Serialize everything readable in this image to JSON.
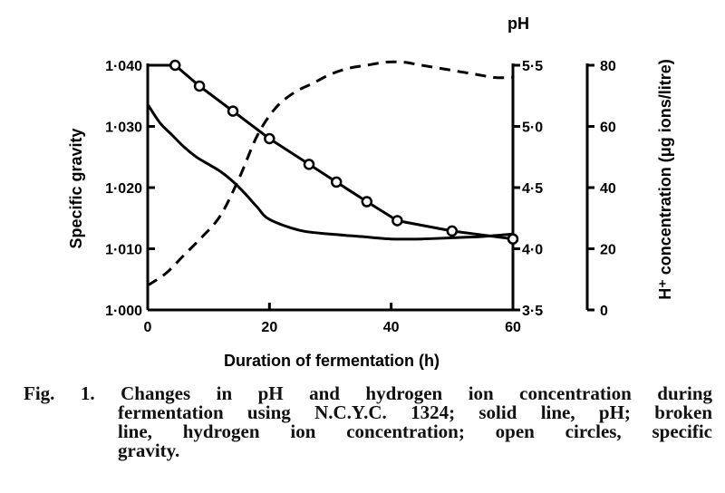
{
  "chart_data": {
    "type": "line",
    "title": "",
    "xlabel": "Duration of fermentation (h)",
    "xlim": [
      0,
      60
    ],
    "xticks": [
      0,
      20,
      40,
      60
    ],
    "axes": {
      "left": {
        "label": "Specific gravity",
        "lim": [
          1.0,
          1.04
        ],
        "ticks": [
          1.0,
          1.01,
          1.02,
          1.03,
          1.04
        ],
        "tick_labels": [
          "1·000",
          "1·010",
          "1·020",
          "1·030",
          "1·040"
        ]
      },
      "right1": {
        "label": "pH",
        "lim": [
          3.5,
          5.5
        ],
        "ticks": [
          3.5,
          4.0,
          4.5,
          5.0,
          5.5
        ],
        "tick_labels": [
          "3·5",
          "4·0",
          "4·5",
          "5·0",
          "5·5"
        ]
      },
      "right2": {
        "label": "H⁺ concentration (μg ions/litre)",
        "lim": [
          0,
          80
        ],
        "ticks": [
          0,
          20,
          40,
          60,
          80
        ],
        "tick_labels": [
          "0",
          "20",
          "40",
          "60",
          "80"
        ]
      }
    },
    "x_tick_labels": [
      "0",
      "20",
      "40",
      "60"
    ],
    "series": [
      {
        "axis": "right1",
        "style": "solid",
        "markers": false,
        "x": [
          0,
          2,
          4,
          6,
          8,
          10,
          12,
          14,
          16,
          18,
          20,
          25,
          30,
          35,
          40,
          45,
          50,
          55,
          60
        ],
        "y": [
          5.18,
          5.03,
          4.93,
          4.83,
          4.75,
          4.69,
          4.63,
          4.55,
          4.45,
          4.34,
          4.24,
          4.15,
          4.12,
          4.1,
          4.08,
          4.08,
          4.09,
          4.1,
          4.12
        ]
      },
      {
        "axis": "right2",
        "style": "dashed",
        "markers": false,
        "x": [
          0,
          3,
          6,
          9,
          12,
          15,
          18,
          21,
          24,
          27,
          30,
          33,
          36,
          39,
          42,
          45,
          48,
          51,
          54,
          57,
          60
        ],
        "y": [
          8,
          12,
          18,
          24,
          31,
          43,
          57,
          66,
          71,
          74,
          77,
          79,
          80,
          81,
          81,
          80,
          79,
          78,
          77,
          76,
          76
        ]
      },
      {
        "axis": "left",
        "style": "solid",
        "markers": true,
        "x": [
          0,
          4.5,
          8.5,
          14,
          20,
          26.5,
          31,
          36,
          41,
          50,
          60
        ],
        "y": [
          1.04,
          1.04,
          1.0366,
          1.0325,
          1.028,
          1.0238,
          1.0209,
          1.0177,
          1.0146,
          1.0129,
          1.0116
        ]
      }
    ],
    "marker_x": [
      4.5,
      8.5,
      14,
      20,
      26.5,
      31,
      36,
      41,
      50,
      60
    ]
  },
  "caption": {
    "lines": [
      "Fig. 1.   Changes in pH and hydrogen ion concentration during",
      "fermentation using N.C.Y.C. 1324; solid line, pH; broken",
      "line, hydrogen ion concentration; open circles, specific",
      "gravity."
    ]
  }
}
